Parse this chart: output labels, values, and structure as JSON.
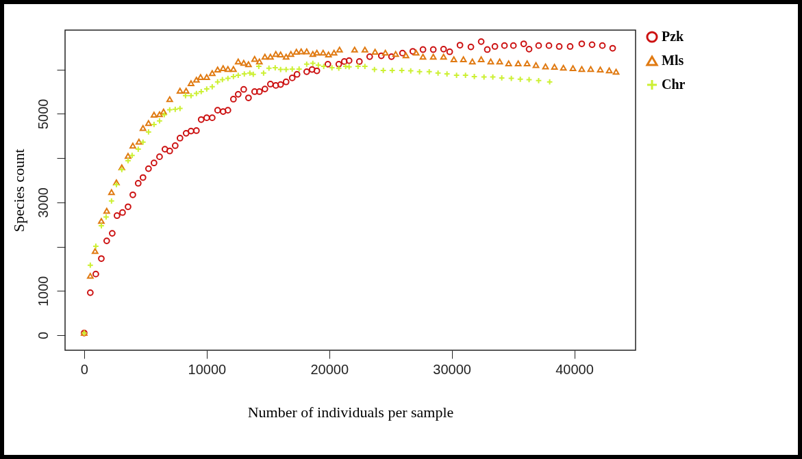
{
  "chart_data": {
    "type": "scatter",
    "xlabel": "Number of individuals per sample",
    "ylabel": "Species count",
    "xlim": [
      -1560,
      45000
    ],
    "ylim": [
      -340,
      6890
    ],
    "xticks": [
      0,
      10000,
      20000,
      30000,
      40000
    ],
    "yticks": [
      0,
      1000,
      {
        "value": 2000,
        "label": null
      },
      3000,
      {
        "value": 4000,
        "label": null
      },
      5000,
      {
        "value": 6000,
        "label": null
      }
    ],
    "legend": "right",
    "series": [
      {
        "name": "Pzk",
        "color": "#cc1111",
        "marker": "circle",
        "x": [
          0,
          500,
          950,
          1400,
          1840,
          2290,
          2680,
          3130,
          3580,
          3970,
          4410,
          4800,
          5250,
          5700,
          6150,
          6590,
          6980,
          7430,
          7820,
          8320,
          8720,
          9160,
          9550,
          10000,
          10450,
          10890,
          11340,
          11730,
          12180,
          12570,
          13020,
          13410,
          13910,
          14300,
          14750,
          15200,
          15640,
          16030,
          16480,
          16980,
          17370,
          18160,
          18600,
          18990,
          19890,
          20780,
          21230,
          21620,
          22460,
          23300,
          24250,
          25080,
          25980,
          26820,
          27650,
          28490,
          29330,
          29830,
          30670,
          31560,
          32400,
          32900,
          33520,
          34300,
          35030,
          35870,
          36310,
          37090,
          37930,
          38770,
          39660,
          40610,
          41450,
          42290,
          43130
        ],
        "values": [
          50,
          960,
          1380,
          1730,
          2130,
          2300,
          2700,
          2770,
          2900,
          3170,
          3430,
          3560,
          3760,
          3890,
          4030,
          4200,
          4160,
          4280,
          4450,
          4560,
          4610,
          4620,
          4870,
          4910,
          4910,
          5080,
          5050,
          5080,
          5330,
          5440,
          5550,
          5360,
          5500,
          5500,
          5560,
          5670,
          5640,
          5660,
          5720,
          5810,
          5890,
          5950,
          6000,
          5970,
          6120,
          6120,
          6180,
          6200,
          6180,
          6290,
          6310,
          6290,
          6370,
          6410,
          6450,
          6450,
          6460,
          6400,
          6550,
          6510,
          6630,
          6450,
          6520,
          6540,
          6540,
          6580,
          6460,
          6540,
          6540,
          6520,
          6520,
          6580,
          6560,
          6540,
          6480
        ]
      },
      {
        "name": "Mls",
        "color": "#e07a12",
        "marker": "triangle",
        "x": [
          0,
          500,
          890,
          1400,
          1840,
          2230,
          2630,
          3070,
          3580,
          3970,
          4470,
          4800,
          5250,
          5700,
          6150,
          6480,
          6980,
          7820,
          8320,
          8720,
          9160,
          9500,
          10000,
          10450,
          10890,
          11340,
          11730,
          12180,
          12570,
          13020,
          13410,
          13910,
          14300,
          14750,
          15200,
          15640,
          16030,
          16480,
          16870,
          17320,
          17710,
          18160,
          18660,
          18990,
          19500,
          19940,
          20390,
          20840,
          22070,
          22910,
          23740,
          24580,
          25420,
          26260,
          27090,
          27650,
          28490,
          29330,
          30170,
          30950,
          31680,
          32400,
          33180,
          33910,
          34640,
          35420,
          36150,
          36870,
          37650,
          38380,
          39110,
          39890,
          40610,
          41340,
          42120,
          42850,
          43410
        ],
        "values": [
          50,
          1340,
          1900,
          2580,
          2810,
          3230,
          3450,
          3790,
          4050,
          4280,
          4370,
          4680,
          4790,
          4980,
          4990,
          5050,
          5330,
          5520,
          5520,
          5690,
          5770,
          5830,
          5830,
          5920,
          6000,
          6030,
          6010,
          6010,
          6180,
          6150,
          6120,
          6240,
          6180,
          6290,
          6290,
          6350,
          6340,
          6290,
          6350,
          6400,
          6410,
          6410,
          6350,
          6380,
          6380,
          6340,
          6380,
          6450,
          6450,
          6450,
          6400,
          6380,
          6350,
          6320,
          6380,
          6290,
          6290,
          6290,
          6230,
          6230,
          6180,
          6230,
          6180,
          6180,
          6140,
          6140,
          6140,
          6100,
          6070,
          6060,
          6040,
          6030,
          6010,
          6010,
          6000,
          5980,
          5950
        ]
      },
      {
        "name": "Chr",
        "color": "#ccf032",
        "marker": "cross",
        "x": [
          0,
          500,
          950,
          1400,
          1790,
          2230,
          2630,
          3070,
          3580,
          3910,
          4410,
          4800,
          5250,
          5700,
          6150,
          6540,
          6980,
          7430,
          7820,
          8270,
          8720,
          9160,
          9550,
          10000,
          10450,
          10890,
          11280,
          11730,
          12180,
          12570,
          13070,
          13520,
          13800,
          14250,
          14640,
          15080,
          15590,
          16030,
          16480,
          16980,
          17540,
          18160,
          18660,
          19110,
          19550,
          20220,
          20780,
          21340,
          21620,
          22350,
          22910,
          23690,
          24410,
          25140,
          25920,
          26650,
          27370,
          28160,
          28880,
          29610,
          30390,
          31120,
          31840,
          32630,
          33350,
          34080,
          34860,
          35590,
          36310,
          37090,
          37990
        ],
        "values": [
          50,
          1580,
          2010,
          2470,
          2670,
          3030,
          3400,
          3740,
          3940,
          4060,
          4200,
          4360,
          4590,
          4760,
          4840,
          4980,
          5090,
          5100,
          5120,
          5410,
          5410,
          5460,
          5500,
          5560,
          5610,
          5720,
          5770,
          5800,
          5840,
          5870,
          5900,
          5920,
          5890,
          6070,
          5920,
          6030,
          6040,
          6000,
          6000,
          6010,
          6010,
          6120,
          6140,
          6100,
          6070,
          6040,
          6030,
          6070,
          6060,
          6070,
          6070,
          6000,
          5980,
          5980,
          5980,
          5970,
          5950,
          5950,
          5920,
          5900,
          5870,
          5870,
          5840,
          5830,
          5830,
          5810,
          5800,
          5780,
          5770,
          5750,
          5720
        ]
      }
    ]
  }
}
